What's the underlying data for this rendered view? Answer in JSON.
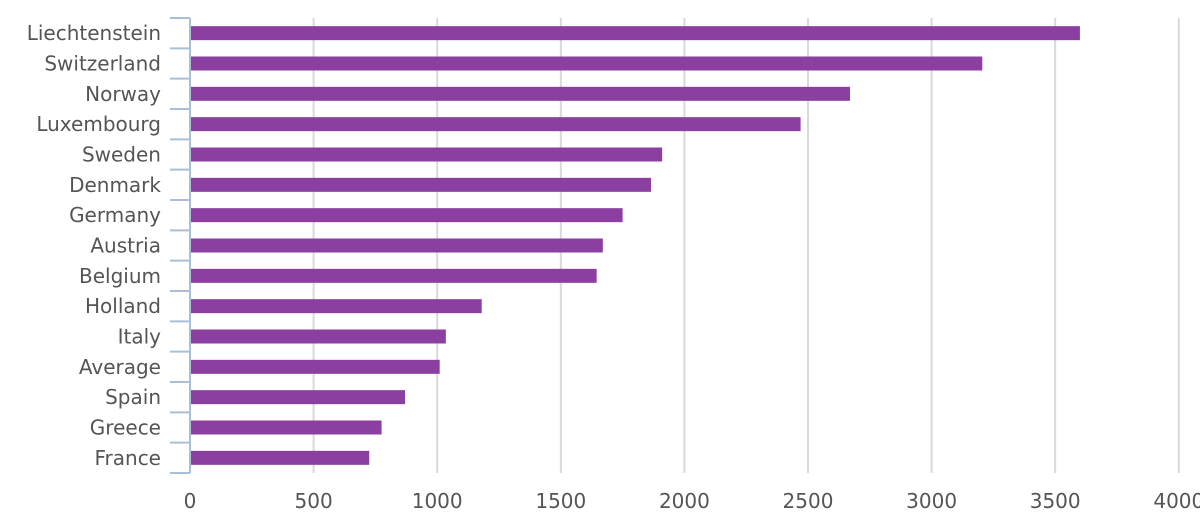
{
  "chart_data": {
    "type": "bar",
    "orientation": "horizontal",
    "categories": [
      "Liechtenstein",
      "Switzerland",
      "Norway",
      "Luxembourg",
      "Sweden",
      "Denmark",
      "Germany",
      "Austria",
      "Belgium",
      "Holland",
      "Italy",
      "Average",
      "Spain",
      "Greece",
      "France"
    ],
    "series": [
      {
        "values": [
          3600,
          3205,
          2670,
          2470,
          1910,
          1865,
          1750,
          1670,
          1645,
          1180,
          1035,
          1010,
          870,
          775,
          725
        ]
      }
    ],
    "xlim": [
      0,
      4000
    ],
    "xticks": [
      "0",
      "500",
      "1000",
      "1500",
      "2000",
      "2500",
      "3000",
      "3500",
      "4000"
    ],
    "grid": "vertical",
    "legend": "none",
    "title": "",
    "xlabel": "",
    "ylabel": "",
    "colors": {
      "bar": "#8b3fa0",
      "grid": "#d9d9d9",
      "axis": "#a9bfd6",
      "text": "#555555"
    }
  }
}
